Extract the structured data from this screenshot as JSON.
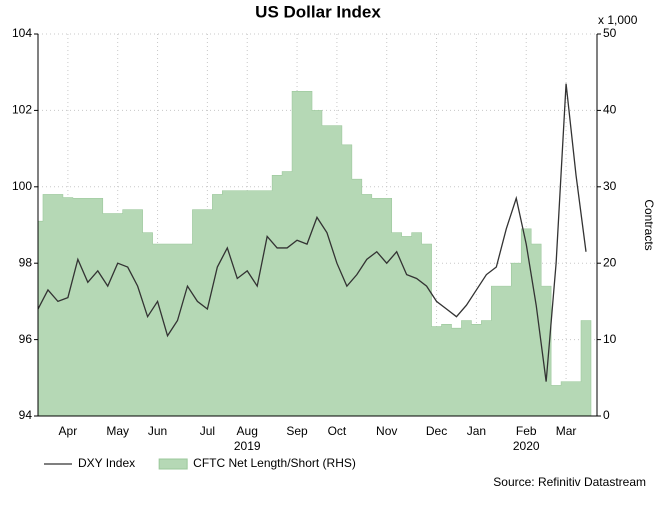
{
  "chart_data": {
    "type": "line",
    "title": "US Dollar Index",
    "categories": [
      null,
      null,
      null,
      "Apr",
      null,
      null,
      null,
      null,
      "May",
      null,
      null,
      null,
      "Jun",
      null,
      null,
      null,
      null,
      "Jul",
      null,
      null,
      null,
      "Aug",
      null,
      null,
      null,
      null,
      "Sep",
      null,
      null,
      null,
      "Oct",
      null,
      null,
      null,
      null,
      "Nov",
      null,
      null,
      null,
      null,
      "Dec",
      null,
      null,
      null,
      "Jan",
      null,
      null,
      null,
      null,
      "Feb",
      null,
      null,
      null,
      "Mar",
      null,
      null
    ],
    "category_years": [
      null,
      null,
      null,
      null,
      null,
      null,
      null,
      null,
      null,
      null,
      null,
      null,
      null,
      null,
      null,
      null,
      null,
      null,
      null,
      null,
      null,
      "2019",
      null,
      null,
      null,
      null,
      null,
      null,
      null,
      null,
      null,
      null,
      null,
      null,
      null,
      null,
      null,
      null,
      null,
      null,
      null,
      null,
      null,
      null,
      null,
      null,
      null,
      null,
      null,
      "2020",
      null,
      null,
      null,
      null,
      null,
      null
    ],
    "series": [
      {
        "name": "CFTC Net Length/Short (RHS)",
        "type": "area",
        "axis": "y2",
        "color": "#b5d8b5",
        "values": [
          25.5,
          29,
          29,
          28.6,
          28.5,
          28.5,
          28.5,
          26.5,
          26.5,
          27,
          27,
          24,
          22.5,
          22.5,
          22.5,
          22.5,
          27,
          27,
          29,
          29.5,
          29.5,
          29.5,
          29.5,
          29.5,
          31.5,
          32,
          42.5,
          42.5,
          40,
          38,
          38,
          35.5,
          31,
          29,
          28.5,
          28.5,
          24,
          23.5,
          24,
          22.5,
          11.7,
          12,
          11.5,
          12.5,
          12,
          12.5,
          17,
          17,
          20,
          24.5,
          22.5,
          17,
          4,
          4.5,
          4.5,
          12.5
        ]
      },
      {
        "name": "DXY Index",
        "type": "line",
        "color": "#333333",
        "values": [
          96.8,
          97.3,
          97.0,
          97.1,
          98.1,
          97.5,
          97.8,
          97.4,
          98.0,
          97.9,
          97.4,
          96.6,
          97.0,
          96.1,
          96.5,
          97.4,
          97.0,
          96.8,
          97.9,
          98.4,
          97.6,
          97.8,
          97.4,
          98.7,
          98.4,
          98.4,
          98.6,
          98.5,
          99.2,
          98.8,
          98.0,
          97.4,
          97.7,
          98.1,
          98.3,
          98.0,
          98.3,
          97.7,
          97.6,
          97.4,
          97.0,
          96.8,
          96.6,
          96.9,
          97.3,
          97.7,
          97.9,
          98.9,
          99.7,
          98.5,
          96.9,
          94.9,
          98.0,
          102.7,
          100.3,
          98.3
        ]
      }
    ],
    "ylim": [
      94,
      104
    ],
    "yticks": [
      94,
      96,
      98,
      100,
      102,
      104
    ],
    "y2lim": [
      0,
      50
    ],
    "y2ticks": [
      0,
      10,
      20,
      30,
      40,
      50
    ],
    "y2unit": "x 1,000",
    "y2label": "Contracts",
    "grid": true,
    "source": "Source: Refinitiv Datastream"
  }
}
